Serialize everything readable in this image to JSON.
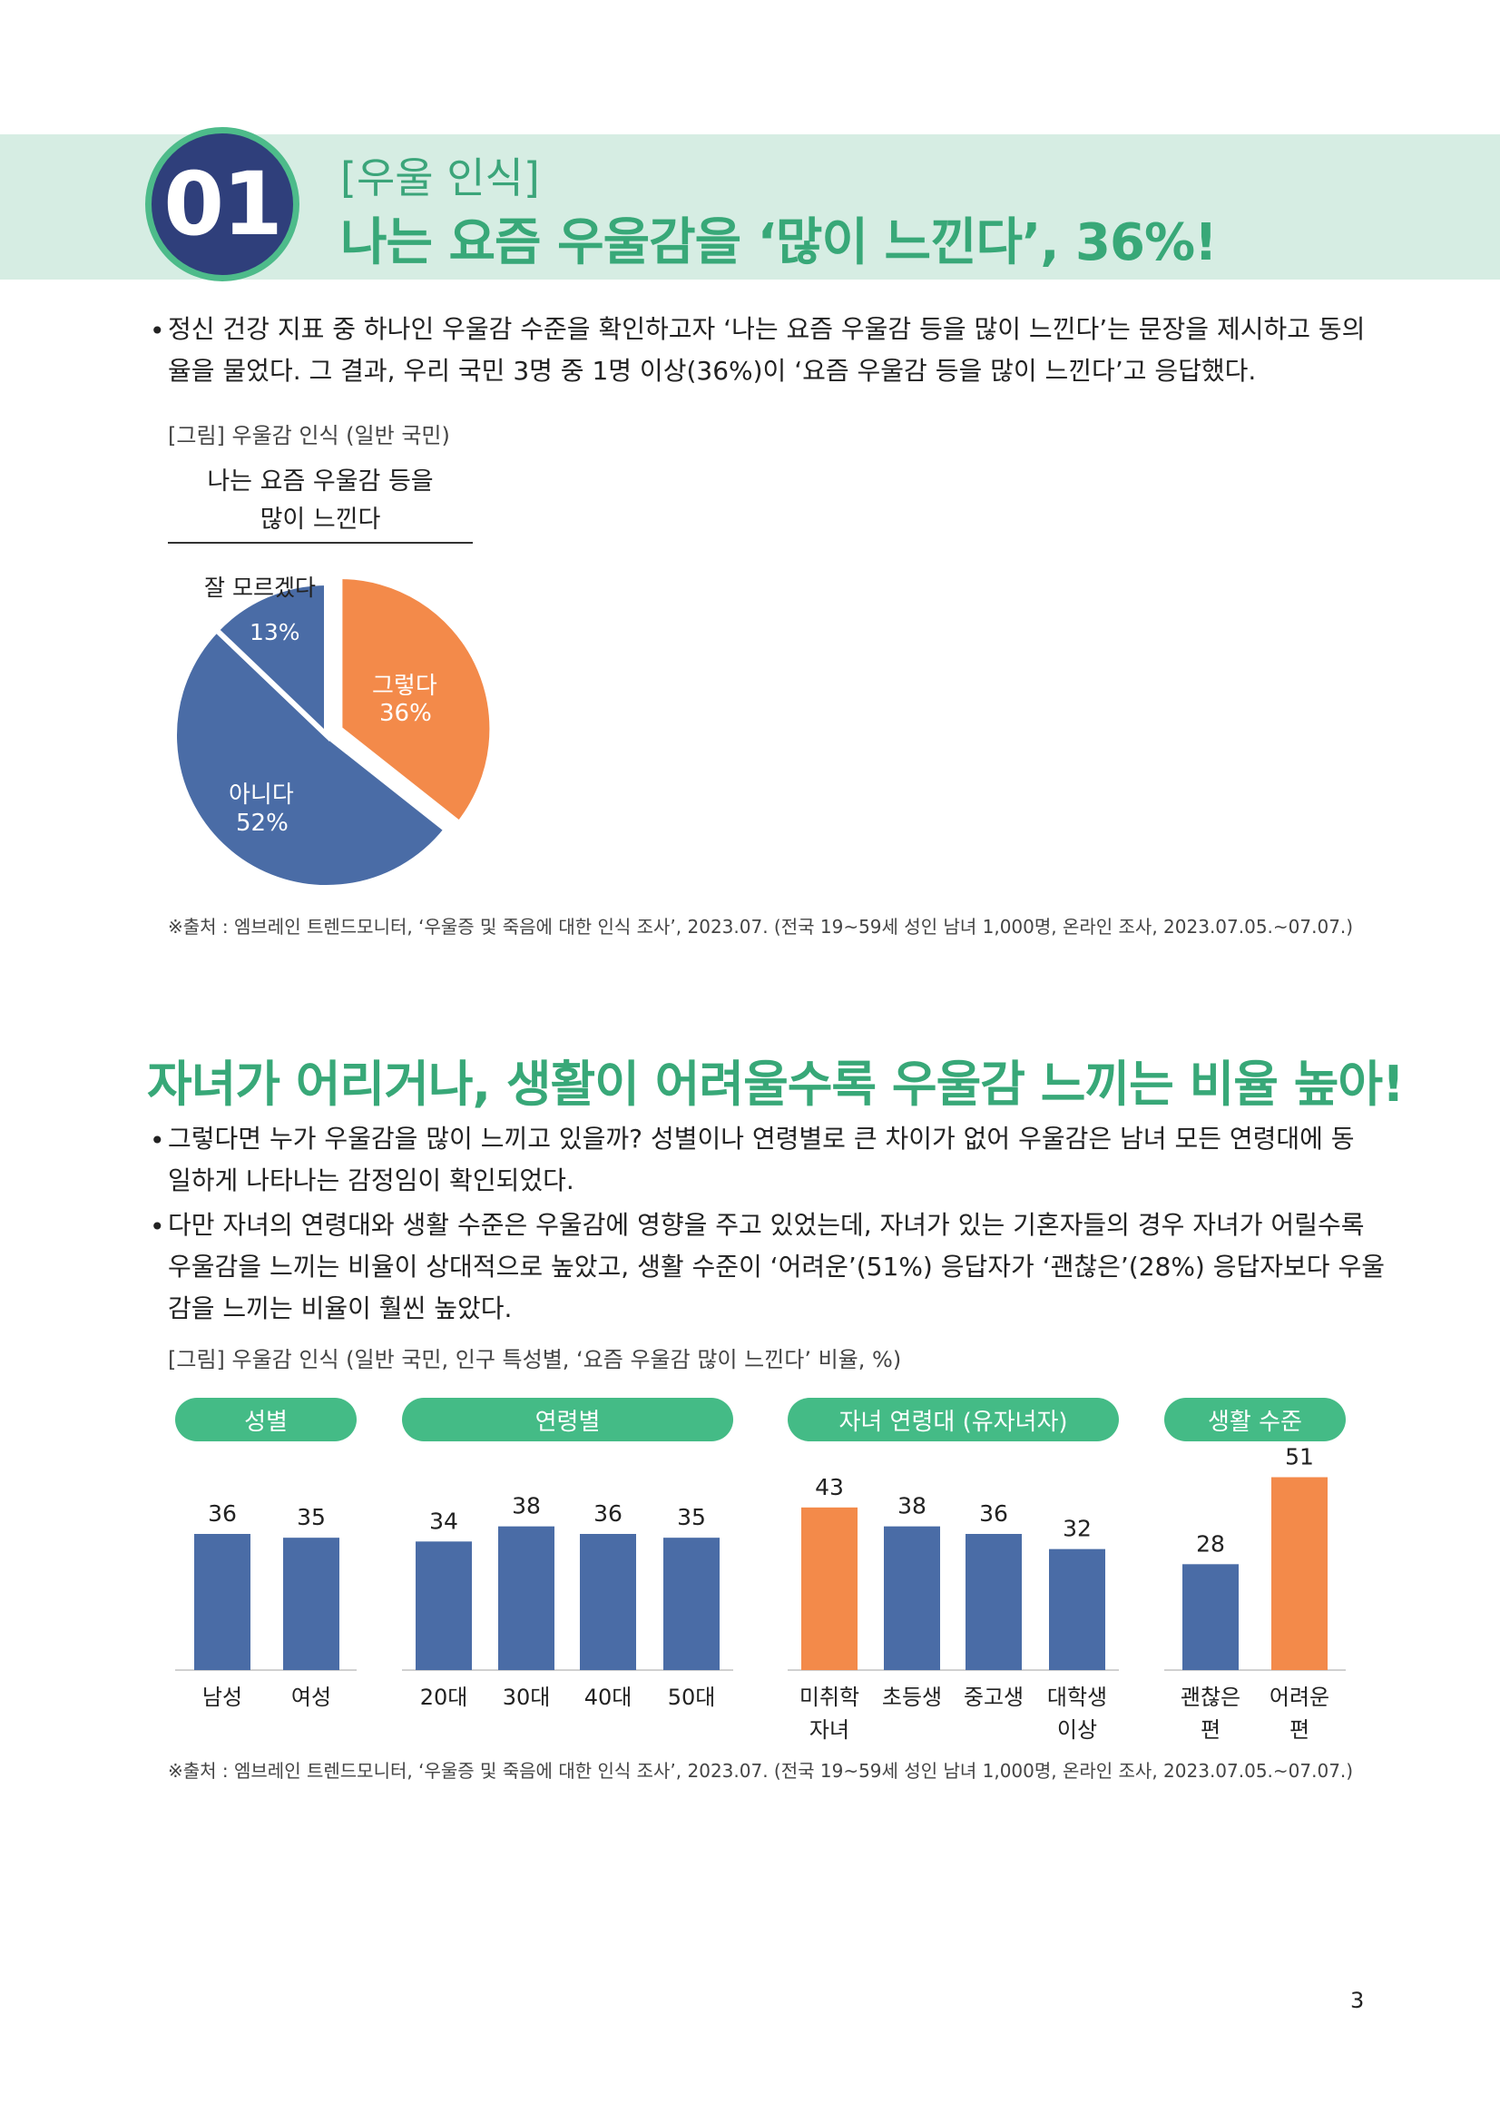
{
  "header": {
    "number": "01",
    "tag": "[우울 인식]",
    "headline": "나는 요즘 우울감을 ‘많이 느낀다’, 36%!"
  },
  "section1": {
    "bullet": "•",
    "para_line1": "정신 건강 지표 중 하나인 우울감 수준을 확인하고자 ‘나는 요즘 우울감 등을 많이 느낀다’는 문장을 제시하고 동의",
    "para_line2": "율을 물었다. 그 결과, 우리 국민 3명 중 1명 이상(36%)이 ‘요즘 우울감 등을 많이 느낀다’고 응답했다.",
    "figure_caption": "[그림] 우울감 인식 (일반 국민)",
    "pie_title_line1": "나는 요즘 우울감 등을",
    "pie_title_line2": "많이 느낀다",
    "source": "※출처 : 엠브레인 트렌드모니터, ‘우울증 및 죽음에 대한 인식 조사’, 2023.07. (전국 19~59세 성인 남녀 1,000명, 온라인 조사, 2023.07.05.~07.07.)"
  },
  "pie": {
    "slices": [
      {
        "label": "그렇다",
        "value": 36,
        "value_text": "36%",
        "color": "#f38a4a"
      },
      {
        "label": "아니다",
        "value": 52,
        "value_text": "52%",
        "color": "#4a6ca6"
      },
      {
        "label": "잘 모르겠다",
        "value": 13,
        "value_text": "13%",
        "color": "#4a6ca6"
      }
    ]
  },
  "section2": {
    "heading": "자녀가 어리거나, 생활이 어려울수록 우울감 느끼는 비율 높아!",
    "bullet": "•",
    "b1_line1": "그렇다면 누가 우울감을 많이 느끼고 있을까? 성별이나 연령별로 큰 차이가 없어 우울감은 남녀 모든 연령대에 동",
    "b1_line2": "일하게 나타나는 감정임이 확인되었다.",
    "b2_line1": "다만 자녀의 연령대와 생활 수준은 우울감에 영향을 주고 있었는데, 자녀가 있는 기혼자들의 경우 자녀가 어릴수록",
    "b2_line2": "우울감을 느끼는 비율이 상대적으로 높았고, 생활 수준이 ‘어려운’(51%) 응답자가 ‘괜찮은’(28%) 응답자보다 우울",
    "b2_line3": "감을 느끼는 비율이 훨씬 높았다.",
    "figure_caption": "[그림] 우울감 인식 (일반 국민, 인구 특성별, ‘요즘 우울감 많이 느낀다’ 비율, %)",
    "source": "※출처 : 엠브레인 트렌드모니터, ‘우울증 및 죽음에 대한 인식 조사’, 2023.07. (전국 19~59세 성인 남녀 1,000명, 온라인 조사, 2023.07.05.~07.07.)"
  },
  "chart_data": {
    "type": "bar",
    "ylim": [
      0,
      60
    ],
    "groups": [
      {
        "name": "성별",
        "categories": [
          [
            "남성"
          ],
          [
            "여성"
          ]
        ],
        "values": [
          36,
          35
        ],
        "colors": [
          "#4a6ca6",
          "#4a6ca6"
        ]
      },
      {
        "name": "연령별",
        "categories": [
          [
            "20대"
          ],
          [
            "30대"
          ],
          [
            "40대"
          ],
          [
            "50대"
          ]
        ],
        "values": [
          34,
          38,
          36,
          35
        ],
        "colors": [
          "#4a6ca6",
          "#4a6ca6",
          "#4a6ca6",
          "#4a6ca6"
        ]
      },
      {
        "name": "자녀 연령대 (유자녀자)",
        "categories": [
          [
            "미취학",
            "자녀"
          ],
          [
            "초등생"
          ],
          [
            "중고생"
          ],
          [
            "대학생",
            "이상"
          ]
        ],
        "values": [
          43,
          38,
          36,
          32
        ],
        "colors": [
          "#f38a4a",
          "#4a6ca6",
          "#4a6ca6",
          "#4a6ca6"
        ]
      },
      {
        "name": "생활 수준",
        "categories": [
          [
            "괜찮은",
            "편"
          ],
          [
            "어려운",
            "편"
          ]
        ],
        "values": [
          28,
          51
        ],
        "colors": [
          "#4a6ca6",
          "#f38a4a"
        ]
      }
    ]
  },
  "page_number": "3"
}
